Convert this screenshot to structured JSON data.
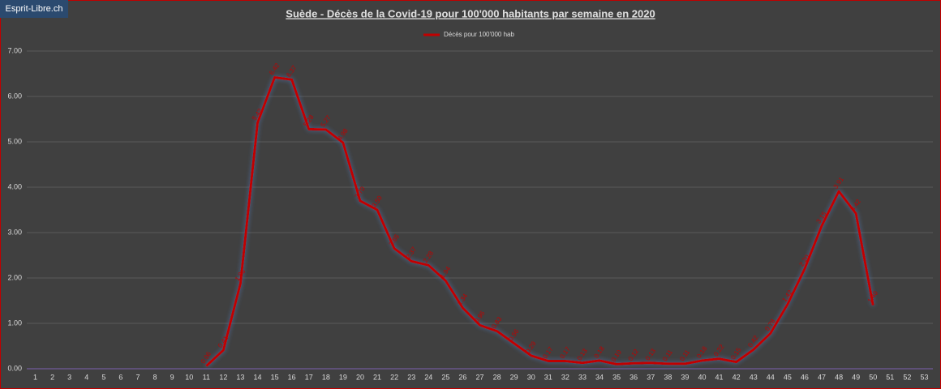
{
  "watermark": "Esprit-Libre.ch",
  "chart_data": {
    "type": "line",
    "title": "Suède - Décès de la Covid-19 pour 100'000  habitants par semaine en 2020",
    "categories": [
      "1",
      "2",
      "3",
      "4",
      "5",
      "6",
      "7",
      "8",
      "9",
      "10",
      "11",
      "12",
      "13",
      "14",
      "15",
      "16",
      "17",
      "18",
      "19",
      "20",
      "21",
      "22",
      "23",
      "24",
      "25",
      "26",
      "27",
      "28",
      "29",
      "30",
      "31",
      "32",
      "33",
      "34",
      "35",
      "36",
      "37",
      "38",
      "39",
      "40",
      "41",
      "42",
      "43",
      "44",
      "45",
      "46",
      "47",
      "48",
      "49",
      "50",
      "51",
      "52",
      "53"
    ],
    "series": [
      {
        "name": "Décès pour 100'000 hab",
        "color": "#c00000",
        "values": [
          null,
          null,
          null,
          null,
          null,
          null,
          null,
          null,
          null,
          null,
          0.06,
          0.41,
          1.88,
          5.42,
          6.42,
          6.37,
          5.28,
          5.27,
          4.98,
          3.7,
          3.5,
          2.65,
          2.37,
          2.28,
          1.94,
          1.34,
          0.96,
          0.83,
          0.56,
          0.29,
          0.17,
          0.17,
          0.13,
          0.18,
          0.1,
          0.12,
          0.13,
          0.11,
          0.11,
          0.18,
          0.22,
          0.15,
          0.42,
          0.78,
          1.42,
          2.2,
          3.15,
          3.91,
          3.42,
          1.4,
          null,
          null,
          null
        ],
        "value_labels": [
          null,
          null,
          null,
          null,
          null,
          null,
          null,
          null,
          null,
          null,
          "0.06",
          "0.41",
          "1.88",
          "5.42",
          "6.42",
          "6.37",
          "5.28",
          "5.27",
          "4.98",
          "3.70",
          "3.50",
          "2.65",
          "2.37",
          "2.28",
          "1.94",
          "1.34",
          "0.96",
          "0.83",
          "0.56",
          "0.29",
          "0.17",
          "0.17",
          "0.13",
          "0.18",
          "0.10",
          "0.12",
          "0.13",
          "0.11",
          "0.11",
          "0.18",
          "0.22",
          "0.15",
          "0.42",
          "0.78",
          "1.42",
          "2.20",
          "3.15",
          "3.91",
          "3.42",
          "1.40",
          null,
          null,
          null
        ]
      }
    ],
    "ylim": [
      0,
      7
    ],
    "yticks": [
      {
        "value": 0,
        "label": "0.00"
      },
      {
        "value": 1,
        "label": "1.00"
      },
      {
        "value": 2,
        "label": "2.00"
      },
      {
        "value": 3,
        "label": "3.00"
      },
      {
        "value": 4,
        "label": "4.00"
      },
      {
        "value": 5,
        "label": "5.00"
      },
      {
        "value": 6,
        "label": "6.00"
      },
      {
        "value": 7,
        "label": "7.00"
      }
    ],
    "grid": true,
    "legend": "top"
  }
}
